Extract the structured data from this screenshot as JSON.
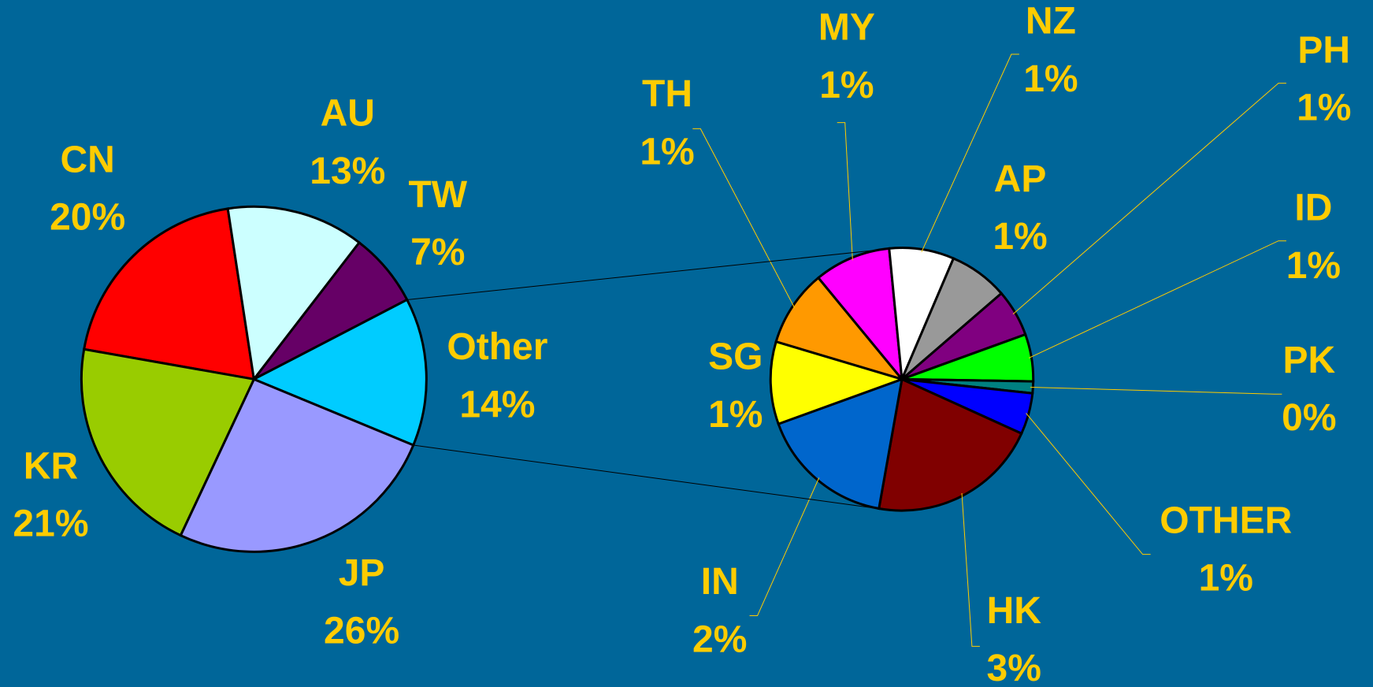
{
  "chart_data": [
    {
      "type": "pie",
      "categories": [
        "CN",
        "AU",
        "TW",
        "Other",
        "JP",
        "KR"
      ],
      "values": [
        20,
        13,
        7,
        14,
        26,
        21
      ],
      "value_labels": [
        "20%",
        "13%",
        "7%",
        "14%",
        "26%",
        "21%"
      ],
      "colors": [
        "#ff0000",
        "#ccffff",
        "#660066",
        "#00ccff",
        "#9999ff",
        "#99cc00"
      ]
    },
    {
      "type": "pie",
      "categories": [
        "TH",
        "MY",
        "NZ",
        "AP",
        "PH",
        "ID",
        "PK",
        "OTHER",
        "HK",
        "IN",
        "SG"
      ],
      "values": [
        1.3,
        1.3,
        1.1,
        1.0,
        0.8,
        0.8,
        0.2,
        0.7,
        2.9,
        2.3,
        1.4
      ],
      "value_labels": [
        "1%",
        "1%",
        "1%",
        "1%",
        "1%",
        "1%",
        "0%",
        "1%",
        "3%",
        "2%",
        "1%"
      ],
      "colors": [
        "#ff9900",
        "#ff00ff",
        "#ffffff",
        "#999999",
        "#800080",
        "#00ff00",
        "#008080",
        "#0000ff",
        "#800000",
        "#0066cc",
        "#ffff00"
      ]
    }
  ]
}
